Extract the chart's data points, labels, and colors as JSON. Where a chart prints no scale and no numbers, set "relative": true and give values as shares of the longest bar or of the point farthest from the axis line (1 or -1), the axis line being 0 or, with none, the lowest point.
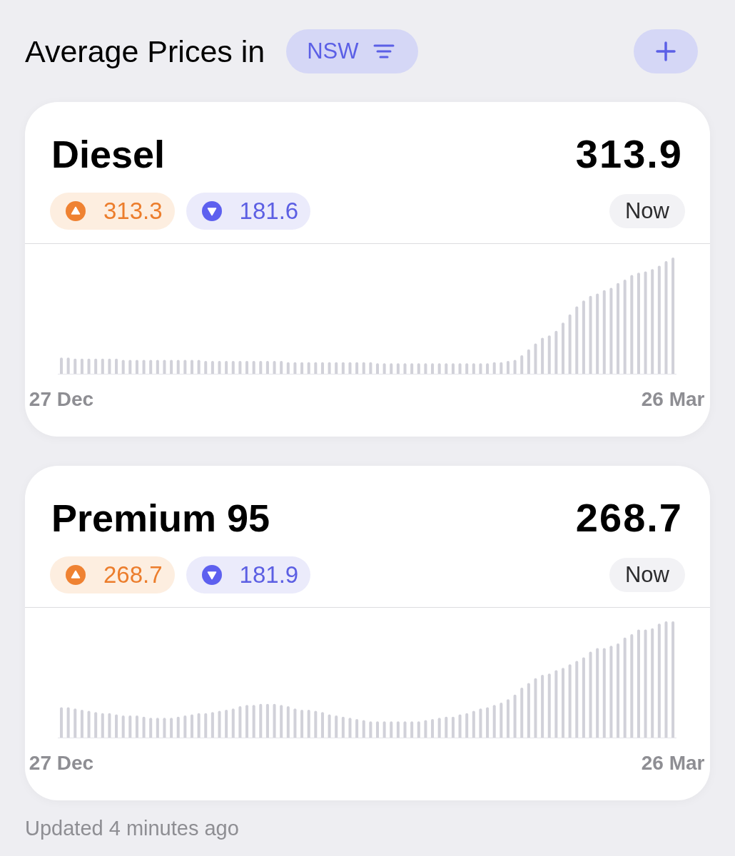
{
  "chart_data": [
    {
      "type": "other",
      "title": "Average Prices in",
      "annotations": [
        "NSW"
      ]
    },
    {
      "type": "bar",
      "title": "Diesel",
      "color": "#d1d1d9",
      "relative": true,
      "categories": [
        "27 Dec",
        null,
        null,
        null,
        null,
        null,
        null,
        null,
        null,
        null,
        null,
        null,
        null,
        null,
        null,
        null,
        null,
        null,
        null,
        null,
        null,
        null,
        null,
        null,
        null,
        null,
        null,
        null,
        null,
        null,
        null,
        null,
        null,
        null,
        null,
        null,
        null,
        null,
        null,
        null,
        null,
        null,
        null,
        null,
        null,
        null,
        null,
        null,
        null,
        null,
        null,
        null,
        null,
        null,
        null,
        null,
        null,
        null,
        null,
        null,
        null,
        null,
        null,
        null,
        null,
        null,
        null,
        null,
        null,
        null,
        null,
        null,
        null,
        null,
        null,
        null,
        null,
        null,
        null,
        null,
        null,
        null,
        null,
        null,
        null,
        null,
        null,
        null,
        null,
        "26 Mar"
      ],
      "values": [
        0.14,
        0.14,
        0.13,
        0.13,
        0.13,
        0.13,
        0.13,
        0.13,
        0.13,
        0.12,
        0.12,
        0.12,
        0.12,
        0.12,
        0.12,
        0.12,
        0.12,
        0.12,
        0.12,
        0.12,
        0.12,
        0.11,
        0.11,
        0.11,
        0.11,
        0.11,
        0.11,
        0.11,
        0.11,
        0.11,
        0.11,
        0.11,
        0.11,
        0.1,
        0.1,
        0.1,
        0.1,
        0.1,
        0.1,
        0.1,
        0.1,
        0.1,
        0.1,
        0.1,
        0.1,
        0.1,
        0.09,
        0.09,
        0.09,
        0.09,
        0.09,
        0.09,
        0.09,
        0.09,
        0.09,
        0.09,
        0.09,
        0.09,
        0.09,
        0.09,
        0.09,
        0.09,
        0.09,
        0.1,
        0.1,
        0.11,
        0.12,
        0.16,
        0.21,
        0.26,
        0.31,
        0.33,
        0.37,
        0.44,
        0.51,
        0.58,
        0.63,
        0.67,
        0.69,
        0.72,
        0.74,
        0.78,
        0.81,
        0.85,
        0.87,
        0.88,
        0.9,
        0.93,
        0.97,
        1
      ],
      "annotations": [
        "313.9",
        "313.3",
        "181.6",
        "Now"
      ]
    },
    {
      "type": "bar",
      "title": "Premium 95",
      "color": "#d1d1d9",
      "relative": true,
      "categories": [
        "27 Dec",
        null,
        null,
        null,
        null,
        null,
        null,
        null,
        null,
        null,
        null,
        null,
        null,
        null,
        null,
        null,
        null,
        null,
        null,
        null,
        null,
        null,
        null,
        null,
        null,
        null,
        null,
        null,
        null,
        null,
        null,
        null,
        null,
        null,
        null,
        null,
        null,
        null,
        null,
        null,
        null,
        null,
        null,
        null,
        null,
        null,
        null,
        null,
        null,
        null,
        null,
        null,
        null,
        null,
        null,
        null,
        null,
        null,
        null,
        null,
        null,
        null,
        null,
        null,
        null,
        null,
        null,
        null,
        null,
        null,
        null,
        null,
        null,
        null,
        null,
        null,
        null,
        null,
        null,
        null,
        null,
        null,
        null,
        null,
        null,
        null,
        null,
        null,
        null,
        "26 Mar"
      ],
      "values": [
        0.26,
        0.26,
        0.25,
        0.24,
        0.23,
        0.22,
        0.21,
        0.21,
        0.2,
        0.19,
        0.19,
        0.19,
        0.18,
        0.17,
        0.17,
        0.17,
        0.17,
        0.18,
        0.19,
        0.2,
        0.21,
        0.21,
        0.22,
        0.23,
        0.24,
        0.25,
        0.27,
        0.28,
        0.28,
        0.29,
        0.29,
        0.29,
        0.28,
        0.27,
        0.25,
        0.24,
        0.24,
        0.23,
        0.22,
        0.2,
        0.19,
        0.18,
        0.17,
        0.16,
        0.15,
        0.14,
        0.14,
        0.14,
        0.14,
        0.14,
        0.14,
        0.14,
        0.14,
        0.15,
        0.16,
        0.17,
        0.18,
        0.18,
        0.2,
        0.21,
        0.23,
        0.25,
        0.26,
        0.28,
        0.3,
        0.33,
        0.37,
        0.43,
        0.47,
        0.51,
        0.54,
        0.55,
        0.58,
        0.6,
        0.63,
        0.66,
        0.69,
        0.74,
        0.77,
        0.77,
        0.79,
        0.81,
        0.86,
        0.89,
        0.93,
        0.93,
        0.94,
        0.98,
        1,
        1
      ],
      "annotations": [
        "268.7",
        "268.7",
        "181.9",
        "Now",
        "Updated 4 minutes ago"
      ]
    }
  ]
}
